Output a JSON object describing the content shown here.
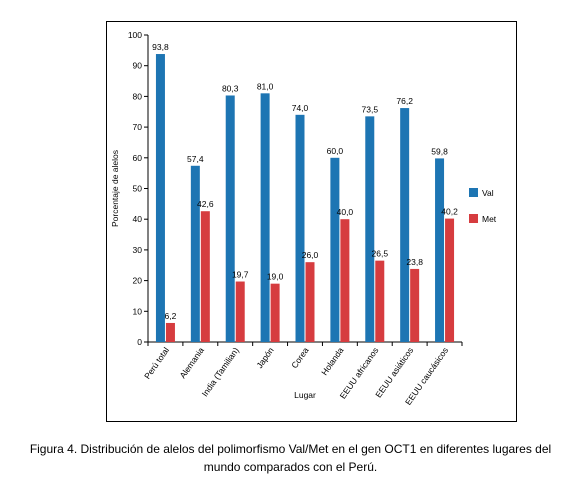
{
  "chart_data": {
    "type": "bar",
    "categories": [
      "Perú total",
      "Alemania",
      "India (Tamilian)",
      "Japón",
      "Corea",
      "Holanda",
      "EEUU africanos",
      "EEUU asiáticos",
      "EEUU caucásicos"
    ],
    "series": [
      {
        "name": "Val",
        "color": "#1d75b3",
        "values": [
          93.8,
          57.4,
          80.3,
          81.0,
          74.0,
          60.0,
          73.5,
          76.2,
          59.8
        ],
        "labels": [
          "93,8",
          "57,4",
          "80,3",
          "81,0",
          "74,0",
          "60,0",
          "73,5",
          "76,2",
          "59,8"
        ]
      },
      {
        "name": "Met",
        "color": "#d63c3f",
        "values": [
          6.2,
          42.6,
          19.7,
          19.0,
          26.0,
          40.0,
          26.5,
          23.8,
          40.2
        ],
        "labels": [
          "6,2",
          "42,6",
          "19,7",
          "19,0",
          "26,0",
          "40,0",
          "26,5",
          "23,8",
          "40,2"
        ]
      }
    ],
    "xlabel": "Lugar",
    "ylabel": "Porcentaje de alelos",
    "ylim": [
      0,
      100
    ],
    "yticks": [
      "0",
      "10",
      "20",
      "30",
      "40",
      "50",
      "60",
      "70",
      "80",
      "90",
      "100"
    ],
    "grid": false,
    "legend_position": "right"
  },
  "caption": {
    "line1": "Figura 4. Distribución de alelos del polimorfismo Val/Met en el gen OCT1 en diferentes lugares del",
    "line2": "mundo comparados con el Perú."
  }
}
